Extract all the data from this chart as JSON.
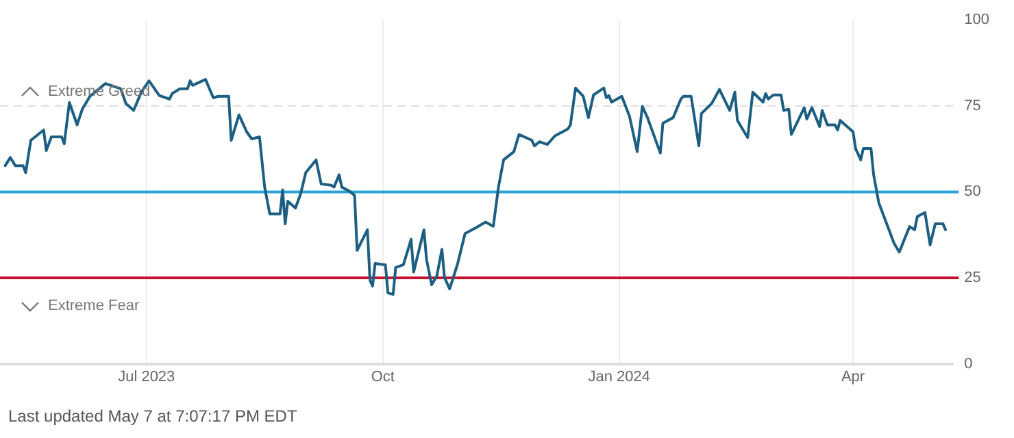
{
  "chart_data": {
    "type": "line",
    "xlim": [
      "2023-05-05",
      "2024-05-10"
    ],
    "ylim": [
      0,
      100
    ],
    "xticks": [
      {
        "value": "2023-07-01",
        "label": "Jul 2023"
      },
      {
        "value": "2023-10-01",
        "label": "Oct"
      },
      {
        "value": "2024-01-01",
        "label": "Jan 2024"
      },
      {
        "value": "2024-04-01",
        "label": "Apr"
      }
    ],
    "yticks": [
      0,
      25,
      50,
      75,
      100
    ],
    "grid": "x",
    "legend": false,
    "marker": "none",
    "line_style": "solid",
    "annotations": [
      "Extreme Greed",
      "Extreme Fear",
      "Last updated May 7 at 7:07:17 PM EDT"
    ],
    "ref_lines": [
      {
        "axis": "y",
        "value": 75,
        "color": "#dddddd",
        "line_style": "dashed"
      },
      {
        "axis": "y",
        "value": 50,
        "color": "#2aa3d8"
      },
      {
        "axis": "y",
        "value": 25,
        "color": "#c8102e"
      }
    ],
    "series": [
      {
        "color": "#1d5f82",
        "x": [
          "2023-05-07",
          "2023-05-09",
          "2023-05-11",
          "2023-05-14",
          "2023-05-15",
          "2023-05-17",
          "2023-05-22",
          "2023-05-23",
          "2023-05-25",
          "2023-05-29",
          "2023-05-30",
          "2023-06-01",
          "2023-06-04",
          "2023-06-06",
          "2023-06-09",
          "2023-06-15",
          "2023-06-21",
          "2023-06-23",
          "2023-06-26",
          "2023-06-29",
          "2023-07-02",
          "2023-07-06",
          "2023-07-10",
          "2023-07-11",
          "2023-07-14",
          "2023-07-17",
          "2023-07-18",
          "2023-07-19",
          "2023-07-24",
          "2023-07-27",
          "2023-07-29",
          "2023-08-02",
          "2023-08-03",
          "2023-08-06",
          "2023-08-09",
          "2023-08-11",
          "2023-08-14",
          "2023-08-16",
          "2023-08-18",
          "2023-08-22",
          "2023-08-23",
          "2023-08-24",
          "2023-08-25",
          "2023-08-28",
          "2023-08-30",
          "2023-09-01",
          "2023-09-05",
          "2023-09-07",
          "2023-09-11",
          "2023-09-12",
          "2023-09-14",
          "2023-09-15",
          "2023-09-18",
          "2023-09-20",
          "2023-09-21",
          "2023-09-25",
          "2023-09-26",
          "2023-09-27",
          "2023-09-28",
          "2023-10-02",
          "2023-10-03",
          "2023-10-05",
          "2023-10-06",
          "2023-10-09",
          "2023-10-12",
          "2023-10-13",
          "2023-10-17",
          "2023-10-18",
          "2023-10-20",
          "2023-10-22",
          "2023-10-24",
          "2023-10-25",
          "2023-10-27",
          "2023-10-30",
          "2023-11-02",
          "2023-11-06",
          "2023-11-10",
          "2023-11-13",
          "2023-11-15",
          "2023-11-17",
          "2023-11-21",
          "2023-11-23",
          "2023-11-28",
          "2023-11-29",
          "2023-12-01",
          "2023-12-04",
          "2023-12-07",
          "2023-12-12",
          "2023-12-13",
          "2023-12-15",
          "2023-12-18",
          "2023-12-20",
          "2023-12-22",
          "2023-12-26",
          "2023-12-27",
          "2023-12-28",
          "2023-12-29",
          "2024-01-02",
          "2024-01-05",
          "2024-01-08",
          "2024-01-10",
          "2024-01-12",
          "2024-01-17",
          "2024-01-18",
          "2024-01-22",
          "2024-01-25",
          "2024-01-26",
          "2024-01-29",
          "2024-02-01",
          "2024-02-02",
          "2024-02-06",
          "2024-02-09",
          "2024-02-13",
          "2024-02-15",
          "2024-02-16",
          "2024-02-20",
          "2024-02-22",
          "2024-02-26",
          "2024-02-27",
          "2024-02-28",
          "2024-03-01",
          "2024-03-04",
          "2024-03-05",
          "2024-03-07",
          "2024-03-08",
          "2024-03-13",
          "2024-03-14",
          "2024-03-16",
          "2024-03-19",
          "2024-03-20",
          "2024-03-22",
          "2024-03-25",
          "2024-03-26",
          "2024-03-27",
          "2024-04-01",
          "2024-04-02",
          "2024-04-04",
          "2024-04-05",
          "2024-04-08",
          "2024-04-09",
          "2024-04-11",
          "2024-04-17",
          "2024-04-19",
          "2024-04-23",
          "2024-04-25",
          "2024-04-26",
          "2024-04-29",
          "2024-05-01",
          "2024-05-03",
          "2024-05-06",
          "2024-05-07"
        ],
        "values": [
          57.6,
          60,
          57.6,
          57.6,
          55.6,
          65,
          68,
          62,
          66,
          66,
          64,
          76,
          69.5,
          74,
          77.8,
          81.5,
          80,
          75.7,
          73.7,
          79,
          82.3,
          78,
          77,
          78.6,
          80,
          80,
          82.3,
          81,
          82.7,
          77.4,
          77.8,
          77.8,
          65,
          72.4,
          67.5,
          65.4,
          66,
          51.4,
          43.6,
          43.6,
          50.6,
          40.7,
          47.3,
          45.3,
          49.4,
          55.6,
          59.3,
          52.3,
          51.9,
          51.4,
          55,
          51.4,
          50.2,
          49,
          33,
          39,
          24.3,
          22.6,
          29.2,
          28.8,
          20.6,
          20.2,
          28,
          28.8,
          36.2,
          26.7,
          39,
          30.4,
          23,
          25.5,
          33.3,
          25.1,
          21.8,
          28.8,
          37.9,
          39.5,
          41.2,
          40,
          51.4,
          59.3,
          61.7,
          66.7,
          65,
          63.4,
          64.6,
          63.8,
          66.3,
          68.3,
          69.5,
          80.2,
          77.8,
          71.6,
          78.2,
          80.2,
          77.4,
          78,
          76.1,
          77.8,
          72,
          61.7,
          74.9,
          71.6,
          61.3,
          70,
          71.6,
          77,
          77.8,
          77.8,
          63.4,
          72.8,
          75.7,
          79.8,
          73.7,
          79,
          70.8,
          65.8,
          79,
          76.1,
          78.6,
          77,
          78.2,
          78.2,
          73.7,
          74,
          66.7,
          74.5,
          71.2,
          74.5,
          69,
          73.7,
          69.5,
          69.5,
          68,
          70.8,
          67.5,
          62.6,
          59.3,
          62.6,
          62.6,
          55.1,
          46.9,
          35,
          32.5,
          39.9,
          39,
          42.8,
          44,
          34.6,
          40.7,
          40.7,
          39
        ]
      }
    ]
  }
}
